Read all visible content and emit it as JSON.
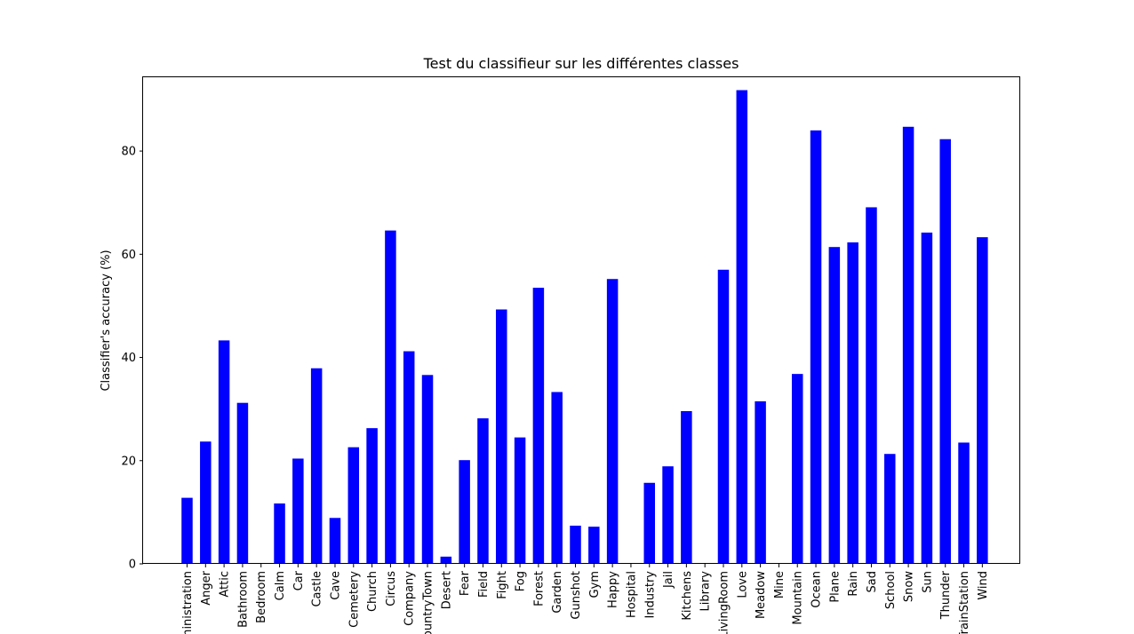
{
  "chart_data": {
    "type": "bar",
    "title": "Test du classifieur sur les différentes classes",
    "xlabel": "",
    "ylabel": "Classifier's accuracy (%)",
    "ylim": [
      0,
      94.3
    ],
    "yticks": [
      0,
      20,
      40,
      60,
      80
    ],
    "bar_color": "#0000ff",
    "categories": [
      "Administration",
      "Anger",
      "Attic",
      "Bathroom",
      "Bedroom",
      "Calm",
      "Car",
      "Castle",
      "Cave",
      "Cemetery",
      "Church",
      "Circus",
      "Company",
      "CountryTown",
      "Desert",
      "Fear",
      "Field",
      "Fight",
      "Fog",
      "Forest",
      "Garden",
      "Gunshot",
      "Gym",
      "Happy",
      "Hospital",
      "Industry",
      "Jail",
      "Kitchens",
      "Library",
      "LivingRoom",
      "Love",
      "Meadow",
      "Mine",
      "Mountain",
      "Ocean",
      "Plane",
      "Rain",
      "Sad",
      "School",
      "Snow",
      "Sun",
      "Thunder",
      "TrainStation",
      "Wind"
    ],
    "values": [
      12.8,
      23.7,
      43.3,
      31.2,
      0,
      11.7,
      20.4,
      37.9,
      8.9,
      22.6,
      26.3,
      64.6,
      41.2,
      36.6,
      1.4,
      20.1,
      28.2,
      49.3,
      24.5,
      53.5,
      33.3,
      7.4,
      7.2,
      55.2,
      0,
      15.7,
      18.9,
      29.6,
      0,
      57.0,
      91.8,
      31.5,
      0,
      36.8,
      84.0,
      61.4,
      62.3,
      69.1,
      21.3,
      84.7,
      64.2,
      82.3,
      23.5,
      63.3
    ]
  }
}
